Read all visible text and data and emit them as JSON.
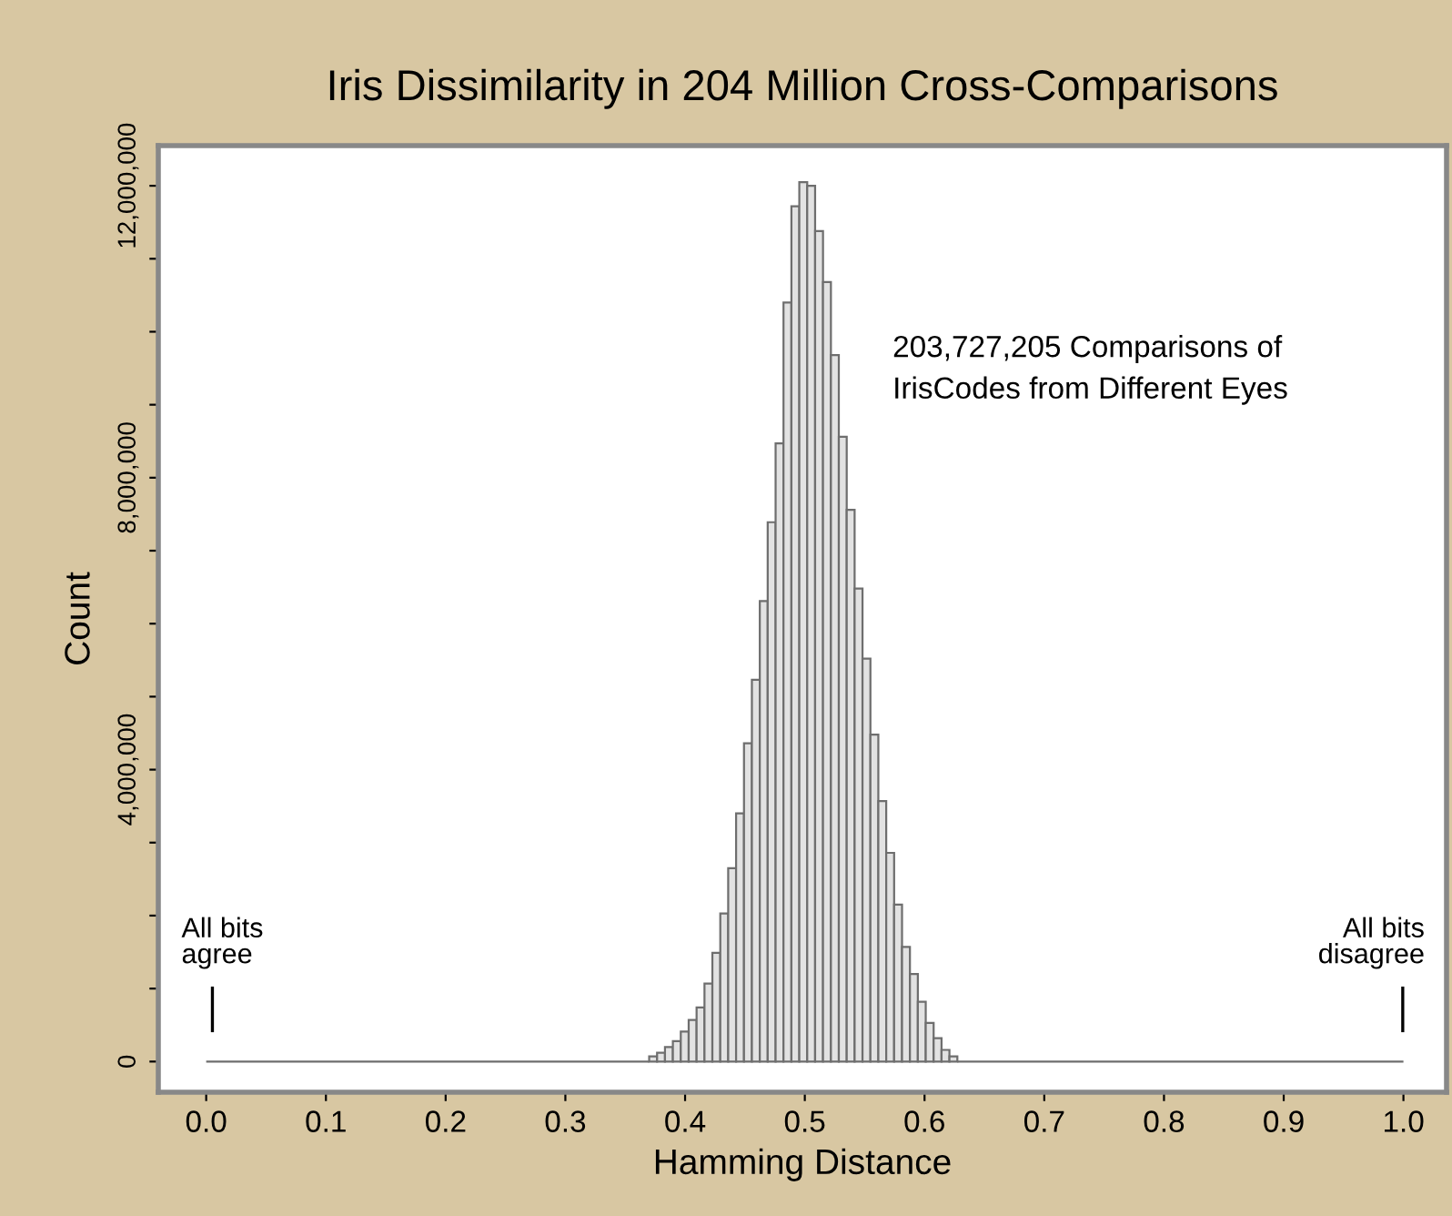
{
  "chart_data": {
    "type": "histogram",
    "title": "Iris Dissimilarity in 204 Million Cross-Comparisons",
    "xlabel": "Hamming Distance",
    "ylabel": "Count",
    "bins": [
      0.0,
      0.37,
      0.3766,
      0.3832,
      0.3898,
      0.3964,
      0.403,
      0.4096,
      0.4162,
      0.4228,
      0.4294,
      0.436,
      0.4426,
      0.4492,
      0.4558,
      0.4624,
      0.469,
      0.4756,
      0.4822,
      0.4888,
      0.4954,
      0.502,
      0.5086,
      0.5152,
      0.5218,
      0.5284,
      0.535,
      0.5416,
      0.5482,
      0.5548,
      0.5614,
      0.568,
      0.5746,
      0.5812,
      0.5878,
      0.5944,
      0.601,
      0.6076,
      0.6142,
      0.6208,
      0.6274,
      1.0
    ],
    "values": [
      0,
      70000,
      120000,
      200000,
      280000,
      410000,
      570000,
      740000,
      1070000,
      1490000,
      2030000,
      2650000,
      3400000,
      4360000,
      5230000,
      6310000,
      7390000,
      8470000,
      10400000,
      11720000,
      12050000,
      12000000,
      11380000,
      10680000,
      9680000,
      8560000,
      7560000,
      6480000,
      5520000,
      4480000,
      3570000,
      2860000,
      2150000,
      1570000,
      1200000,
      820000,
      530000,
      320000,
      160000,
      70000,
      0
    ],
    "colors": [
      "#6e6e6e",
      "#e2e2e2",
      "#e2e2e2",
      "#e2e2e2",
      "#e2e2e2",
      "#e2e2e2",
      "#e2e2e2",
      "#e2e2e2",
      "#e2e2e2",
      "#e2e2e2",
      "#e2e2e2",
      "#e2e2e2",
      "#e2e2e2",
      "#e2e2e2",
      "#e2e2e2",
      "#e2e2e2",
      "#e2e2e2",
      "#e2e2e2",
      "#e2e2e2",
      "#e2e2e2",
      "#e2e2e2",
      "#e2e2e2",
      "#e2e2e2",
      "#e2e2e2",
      "#e2e2e2",
      "#e2e2e2",
      "#e2e2e2",
      "#e2e2e2",
      "#e2e2e2",
      "#e2e2e2",
      "#e2e2e2",
      "#e2e2e2",
      "#e2e2e2",
      "#e2e2e2",
      "#e2e2e2",
      "#e2e2e2",
      "#e2e2e2",
      "#e2e2e2",
      "#e2e2e2",
      "#e2e2e2",
      "#6e6e6e"
    ],
    "xlim": [
      -0.04,
      1.036
    ],
    "ylim": [
      -420000,
      12550000
    ],
    "xticks": [
      {
        "value": 0,
        "label": "0.0"
      },
      0.1,
      0.2,
      0.3,
      0.4,
      0.5,
      0.6,
      0.7,
      0.8,
      0.9,
      {
        "value": 1,
        "label": "1.0"
      }
    ],
    "yticks": [
      {
        "value": 0,
        "label": "0"
      },
      {
        "value": 1000000,
        "label": null
      },
      {
        "value": 2000000,
        "label": null
      },
      {
        "value": 3000000,
        "label": null
      },
      {
        "value": 4000000,
        "label": "4,000,000"
      },
      {
        "value": 5000000,
        "label": null
      },
      {
        "value": 6000000,
        "label": null
      },
      {
        "value": 7000000,
        "label": null
      },
      {
        "value": 8000000,
        "label": "8,000,000"
      },
      {
        "value": 9000000,
        "label": null
      },
      {
        "value": 10000000,
        "label": null
      },
      {
        "value": 11000000,
        "label": null
      },
      {
        "value": 12000000,
        "label": "12,000,000"
      }
    ],
    "annotations": [
      "203,727,205 Comparisons of\nIrisCodes from Different Eyes",
      "All bits\nagree",
      "All bits\ndisagree"
    ],
    "grid": false,
    "legend": false
  }
}
